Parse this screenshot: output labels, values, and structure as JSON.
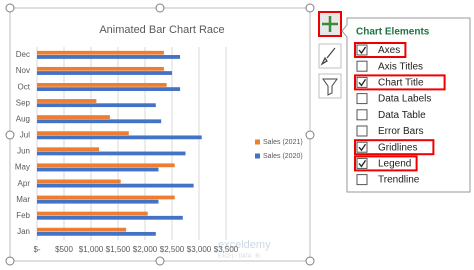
{
  "chart_data": {
    "type": "bar",
    "orientation": "horizontal",
    "title": "Animated Bar Chart Race",
    "categories": [
      "Jan",
      "Feb",
      "Mar",
      "Apr",
      "May",
      "Jun",
      "Jul",
      "Aug",
      "Sep",
      "Oct",
      "Nov",
      "Dec"
    ],
    "series": [
      {
        "name": "Sales (2021)",
        "color": "#ed7d31",
        "values": [
          1650,
          2050,
          2550,
          1550,
          2550,
          1150,
          1700,
          1350,
          1100,
          2400,
          2350,
          2350
        ]
      },
      {
        "name": "Sales (2020)",
        "color": "#4472c4",
        "values": [
          2200,
          2700,
          2250,
          2900,
          2250,
          2750,
          3050,
          2300,
          2200,
          2650,
          2500,
          2650
        ]
      }
    ],
    "xlim": [
      0,
      3500
    ],
    "xticks": [
      {
        "value": 0,
        "label": "$-"
      },
      {
        "value": 500,
        "label": "$500"
      },
      {
        "value": 1000,
        "label": "$1,000"
      },
      {
        "value": 1500,
        "label": "$1,500"
      },
      {
        "value": 2000,
        "label": "$2,000"
      },
      {
        "value": 2500,
        "label": "$2,500"
      },
      {
        "value": 3000,
        "label": "$3,000"
      },
      {
        "value": 3500,
        "label": "$3,500"
      }
    ],
    "grid": true,
    "legend": "right"
  },
  "watermark": {
    "name": "exceldemy",
    "tagline": "EXCEL · DATA · BI"
  },
  "chart_elements_panel": {
    "title": "Chart Elements",
    "items": [
      {
        "label": "Axes",
        "checked": true,
        "highlighted": true
      },
      {
        "label": "Axis Titles",
        "checked": false,
        "highlighted": false
      },
      {
        "label": "Chart Title",
        "checked": true,
        "highlighted": true
      },
      {
        "label": "Data Labels",
        "checked": false,
        "highlighted": false
      },
      {
        "label": "Data Table",
        "checked": false,
        "highlighted": false
      },
      {
        "label": "Error Bars",
        "checked": false,
        "highlighted": false
      },
      {
        "label": "Gridlines",
        "checked": true,
        "highlighted": true
      },
      {
        "label": "Legend",
        "checked": true,
        "highlighted": true
      },
      {
        "label": "Trendline",
        "checked": false,
        "highlighted": false
      }
    ]
  }
}
